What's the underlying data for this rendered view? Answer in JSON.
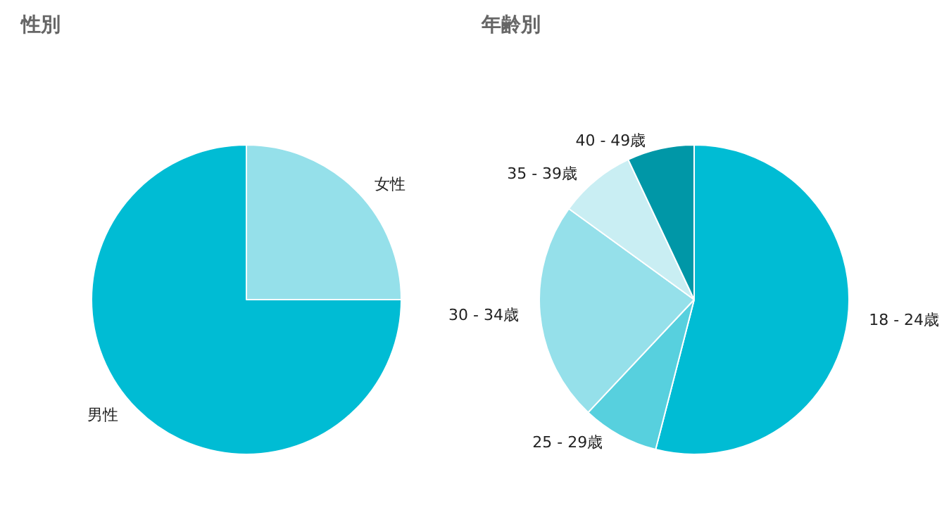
{
  "chart_data": [
    {
      "type": "pie",
      "title": "性別",
      "categories": [
        "女性",
        "男性"
      ],
      "values": [
        25,
        75
      ],
      "colors": [
        "#95e0ea",
        "#00bcd4"
      ]
    },
    {
      "type": "pie",
      "title": "年齢別",
      "categories": [
        "18 - 24歳",
        "25 - 29歳",
        "30 - 34歳",
        "35 - 39歳",
        "40 - 49歳"
      ],
      "values": [
        54,
        8,
        23,
        8,
        7
      ],
      "colors": [
        "#00bcd4",
        "#57d0de",
        "#95e0ea",
        "#c9eef3",
        "#0097a7"
      ]
    }
  ]
}
